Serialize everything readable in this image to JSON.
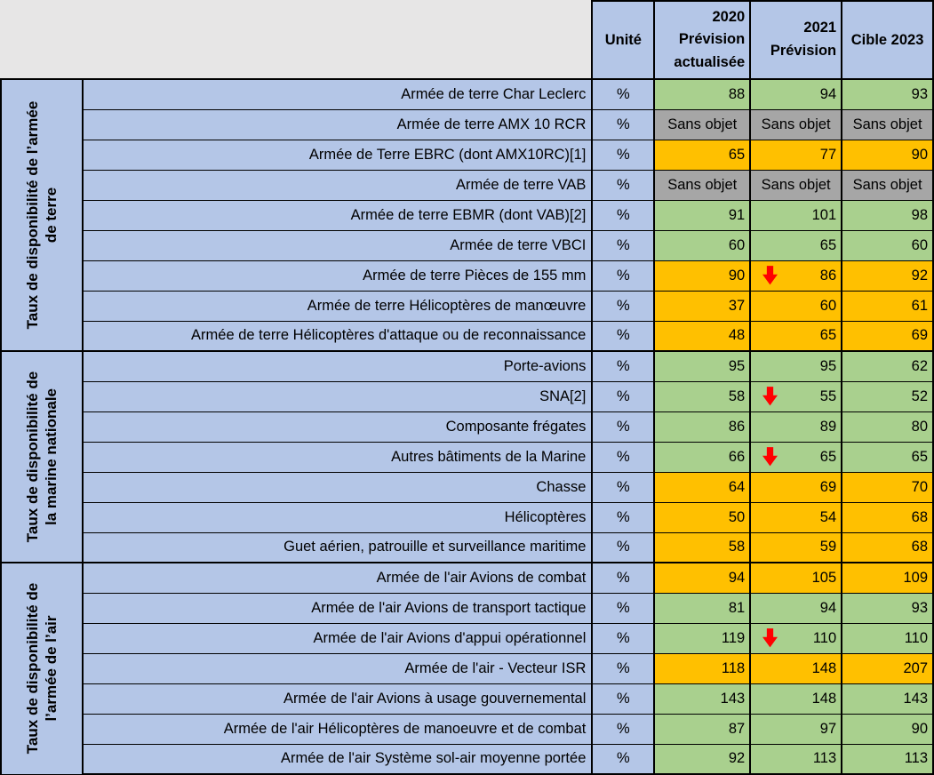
{
  "header": {
    "unit_label": "Unité",
    "col_2020": "2020\nPrévision\nactualisée",
    "col_2021": "2021\nPrévision",
    "col_cible": "Cible 2023"
  },
  "colors": {
    "header_blue": "#B4C6E7",
    "corner_gray": "#E7E6E6",
    "green": "#A9D08E",
    "orange": "#FFC000",
    "gray": "#A6A6A6",
    "arrow_red": "#FF0000",
    "border_black": "#000000"
  },
  "na_text": "Sans objet",
  "groups": [
    {
      "label": "Taux de disponibilité de l’armée\nde terre",
      "rows": [
        {
          "label": "Armée de terre Char Leclerc",
          "unit": "%",
          "color": "green",
          "values": [
            88,
            94,
            93
          ],
          "arrow": false
        },
        {
          "label": "Armée de terre AMX 10 RCR",
          "unit": "%",
          "color": "gray",
          "values": [
            "Sans objet",
            "Sans objet",
            "Sans objet"
          ],
          "arrow": false
        },
        {
          "label": "Armée de Terre EBRC (dont AMX10RC)[1]",
          "unit": "%",
          "color": "orange",
          "values": [
            65,
            77,
            90
          ],
          "arrow": false
        },
        {
          "label": "Armée de terre VAB",
          "unit": "%",
          "color": "gray",
          "values": [
            "Sans objet",
            "Sans objet",
            "Sans objet"
          ],
          "arrow": false
        },
        {
          "label": "Armée de terre EBMR (dont VAB)[2]",
          "unit": "%",
          "color": "green",
          "values": [
            91,
            101,
            98
          ],
          "arrow": false
        },
        {
          "label": "Armée de terre VBCI",
          "unit": "%",
          "color": "green",
          "values": [
            60,
            65,
            60
          ],
          "arrow": false
        },
        {
          "label": "Armée de terre Pièces de 155 mm",
          "unit": "%",
          "color": "orange",
          "values": [
            90,
            86,
            92
          ],
          "arrow": true
        },
        {
          "label": "Armée de terre Hélicoptères de manœuvre",
          "unit": "%",
          "color": "orange",
          "values": [
            37,
            60,
            61
          ],
          "arrow": false
        },
        {
          "label": "Armée de terre Hélicoptères d'attaque ou de reconnaissance",
          "unit": "%",
          "color": "orange",
          "values": [
            48,
            65,
            69
          ],
          "arrow": false
        }
      ]
    },
    {
      "label": "Taux de disponibilité de\nla marine nationale",
      "rows": [
        {
          "label": "Porte-avions",
          "unit": "%",
          "color": "green",
          "values": [
            95,
            95,
            62
          ],
          "arrow": false
        },
        {
          "label": "SNA[2]",
          "unit": "%",
          "color": "green",
          "values": [
            58,
            55,
            52
          ],
          "arrow": true
        },
        {
          "label": "Composante frégates",
          "unit": "%",
          "color": "green",
          "values": [
            86,
            89,
            80
          ],
          "arrow": false
        },
        {
          "label": "Autres bâtiments de la Marine",
          "unit": "%",
          "color": "green",
          "values": [
            66,
            65,
            65
          ],
          "arrow": true
        },
        {
          "label": "Chasse",
          "unit": "%",
          "color": "orange",
          "values": [
            64,
            69,
            70
          ],
          "arrow": false
        },
        {
          "label": "Hélicoptères",
          "unit": "%",
          "color": "orange",
          "values": [
            50,
            54,
            68
          ],
          "arrow": false
        },
        {
          "label": "Guet aérien, patrouille et surveillance maritime",
          "unit": "%",
          "color": "orange",
          "values": [
            58,
            59,
            68
          ],
          "arrow": false
        }
      ]
    },
    {
      "label": "Taux de disponibilité de\nl’armée de l’air",
      "rows": [
        {
          "label": "Armée de l'air Avions de combat",
          "unit": "%",
          "color": "orange",
          "values": [
            94,
            105,
            109
          ],
          "arrow": false
        },
        {
          "label": "Armée de l'air Avions de transport tactique",
          "unit": "%",
          "color": "green",
          "values": [
            81,
            94,
            93
          ],
          "arrow": false
        },
        {
          "label": "Armée de l'air Avions d'appui opérationnel",
          "unit": "%",
          "color": "green",
          "values": [
            119,
            110,
            110
          ],
          "arrow": true
        },
        {
          "label": "Armée de l'air - Vecteur ISR",
          "unit": "%",
          "color": "orange",
          "values": [
            118,
            148,
            207
          ],
          "arrow": false
        },
        {
          "label": "Armée de l'air Avions à usage gouvernemental",
          "unit": "%",
          "color": "green",
          "values": [
            143,
            148,
            143
          ],
          "arrow": false
        },
        {
          "label": "Armée de l'air Hélicoptères de manoeuvre et de combat",
          "unit": "%",
          "color": "green",
          "values": [
            87,
            97,
            90
          ],
          "arrow": false
        },
        {
          "label": "Armée de l'air Système sol-air moyenne portée",
          "unit": "%",
          "color": "green",
          "values": [
            92,
            113,
            113
          ],
          "arrow": false
        }
      ]
    }
  ]
}
